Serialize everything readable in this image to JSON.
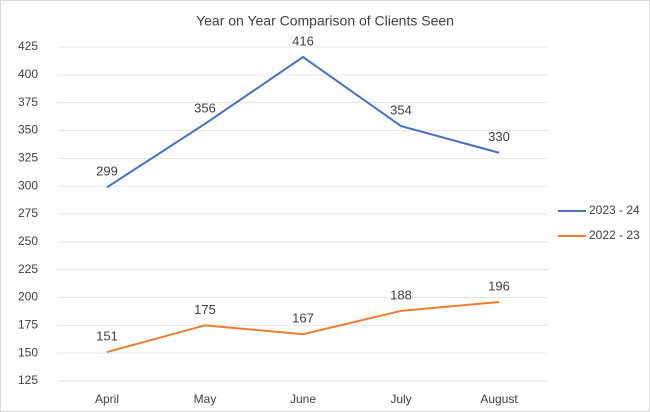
{
  "chart_data": {
    "type": "line",
    "title": "Year on Year Comparison of Clients Seen",
    "categories": [
      "April",
      "May",
      "June",
      "July",
      "August"
    ],
    "series": [
      {
        "name": "2023 - 24",
        "color": "#4472c4",
        "values": [
          299,
          356,
          416,
          354,
          330
        ]
      },
      {
        "name": "2022 - 23",
        "color": "#ed7d31",
        "values": [
          151,
          175,
          167,
          188,
          196
        ]
      }
    ],
    "ylim": [
      125,
      425
    ],
    "yticks": [
      125,
      150,
      175,
      200,
      225,
      250,
      275,
      300,
      325,
      350,
      375,
      400,
      425
    ],
    "grid": true,
    "legend": "right"
  }
}
